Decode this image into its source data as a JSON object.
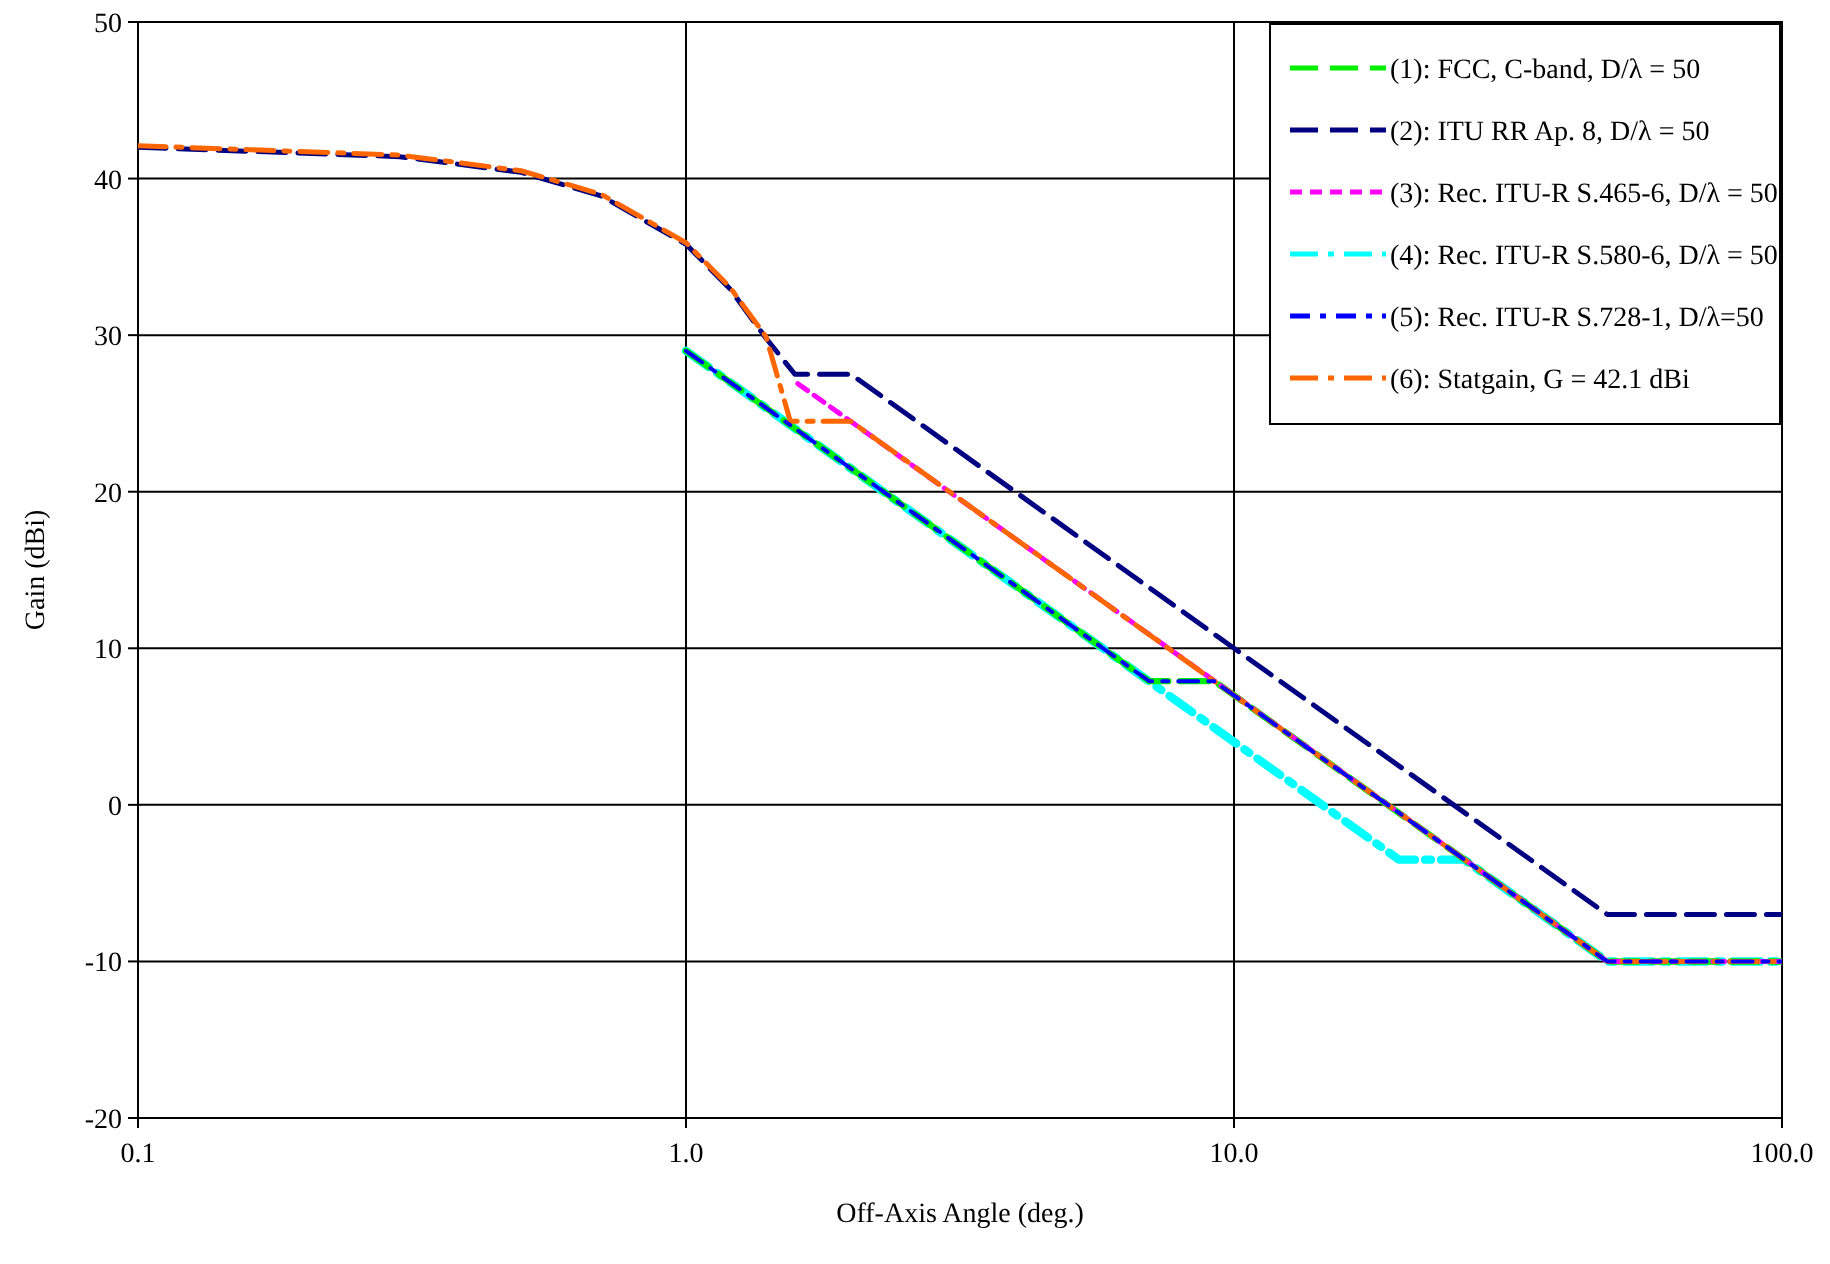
{
  "chart_data": {
    "type": "line",
    "xlabel": "Off-Axis Angle (deg.)",
    "ylabel": "Gain (dBi)",
    "log": "x",
    "xlim": [
      0.1,
      100
    ],
    "xticks": [
      {
        "value": 0.1,
        "label": "0.1"
      },
      {
        "value": 1,
        "label": "1.0"
      },
      {
        "value": 10,
        "label": "10.0"
      },
      {
        "value": 100,
        "label": "100.0"
      }
    ],
    "ylim": [
      -20,
      50
    ],
    "yticks": [
      -20,
      -10,
      0,
      10,
      20,
      30,
      40,
      50
    ],
    "grid": true,
    "legend": "top right",
    "line_style": "dashed",
    "series": [
      {
        "name": "(1): FCC, C-band, D/λ = 50",
        "color": "#00ee00",
        "x": [
          1,
          7,
          9.2,
          48,
          100
        ],
        "values": [
          29,
          7.9,
          7.9,
          -10,
          -10
        ]
      },
      {
        "name": "(2): ITU RR Ap. 8, D/λ = 50",
        "color": "#000080",
        "x": [
          0.1,
          0.3,
          0.5,
          0.7,
          1,
          1.2,
          1.4,
          1.58,
          2,
          10,
          48,
          100
        ],
        "values": [
          42,
          41.4,
          40.4,
          38.9,
          35.8,
          33,
          29.8,
          27.5,
          27.5,
          10,
          -7,
          -7
        ]
      },
      {
        "name": "(3): Rec. ITU-R S.465-6, D/λ = 50",
        "color": "#ff00ff",
        "x": [
          1.6,
          48,
          100
        ],
        "values": [
          26.9,
          -10,
          -10
        ]
      },
      {
        "name": "(4): Rec. ITU-R S.580-6, D/λ = 50",
        "color": "#00ffff",
        "x": [
          1,
          20,
          26.3,
          48,
          100
        ],
        "values": [
          29,
          -3.5,
          -3.5,
          -10,
          -10
        ]
      },
      {
        "name": "(5): Rec. ITU-R S.728-1, D/λ=50",
        "color": "#0000ff",
        "x": [
          1,
          7,
          9.2,
          48,
          100
        ],
        "values": [
          29,
          7.9,
          7.9,
          -10,
          -10
        ]
      },
      {
        "name": "(6): Statgain, G = 42.1 dBi",
        "color": "#ff6600",
        "x": [
          0.1,
          0.3,
          0.5,
          0.7,
          1,
          1.2,
          1.4,
          1.55,
          2,
          10,
          48,
          100
        ],
        "values": [
          42.1,
          41.5,
          40.5,
          39,
          35.9,
          33.1,
          29.9,
          24.5,
          24.5,
          7,
          -10,
          -10
        ]
      }
    ]
  }
}
